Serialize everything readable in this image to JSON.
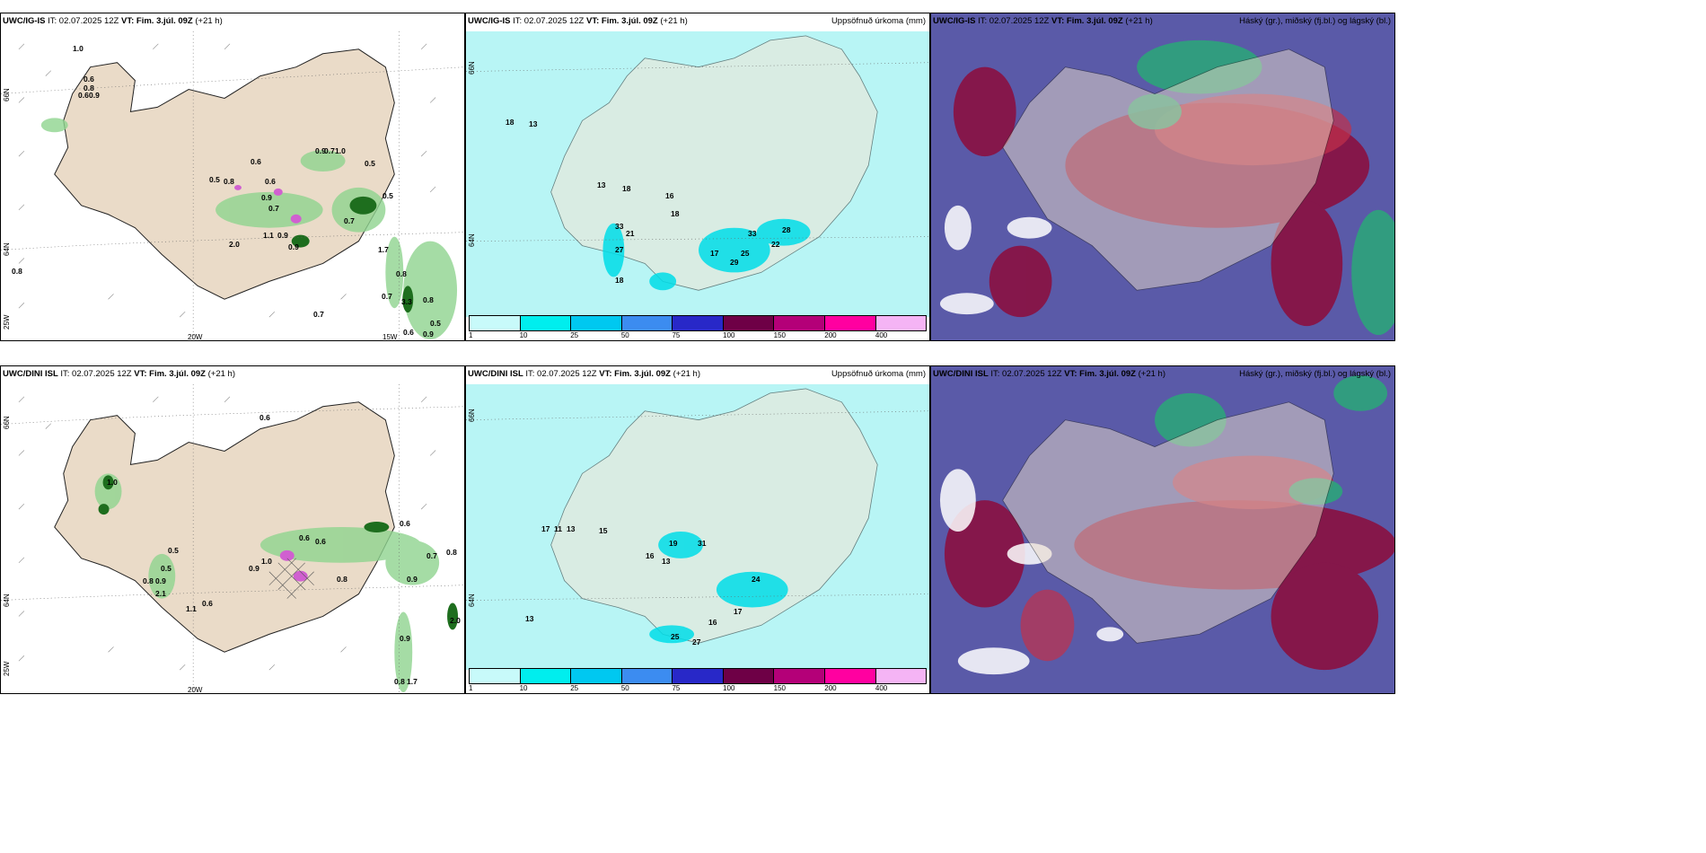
{
  "panels": [
    {
      "id": "ig-precip",
      "title_bold": "UWC/IG-IS",
      "title_it": "IT: 02.07.2025 12Z",
      "title_vt": "VT: Fim. 3.júl. 09Z",
      "title_lead": "(+21 h)",
      "right": ""
    },
    {
      "id": "ig-accum",
      "title_bold": "UWC/IG-IS",
      "title_it": "IT: 02.07.2025 12Z",
      "title_vt": "VT: Fim. 3.júl. 09Z",
      "title_lead": "(+21 h)",
      "right": "Uppsöfnuð úrkoma (mm)"
    },
    {
      "id": "ig-cloud",
      "title_bold": "UWC/IG-IS",
      "title_it": "IT: 02.07.2025 12Z",
      "title_vt": "VT: Fim. 3.júl. 09Z",
      "title_lead": "(+21 h)",
      "right": "Háský (gr.), miðský (fj.bl.) og lágský (bl.)"
    },
    {
      "id": "dini-precip",
      "title_bold": "UWC/DINI ISL",
      "title_it": "IT: 02.07.2025 12Z",
      "title_vt": "VT: Fim. 3.júl. 09Z",
      "title_lead": "(+21 h)",
      "right": ""
    },
    {
      "id": "dini-accum",
      "title_bold": "UWC/DINI ISL",
      "title_it": "IT: 02.07.2025 12Z",
      "title_vt": "VT: Fim. 3.júl. 09Z",
      "title_lead": "(+21 h)",
      "right": "Uppsöfnuð úrkoma (mm)"
    },
    {
      "id": "dini-cloud",
      "title_bold": "UWC/DINI ISL",
      "title_it": "IT: 02.07.2025 12Z",
      "title_vt": "VT: Fim. 3.júl. 09Z",
      "title_lead": "(+21 h)",
      "right": "Háský (gr.), miðský (fj.bl.) og lágský (bl.)"
    }
  ],
  "axis_labels": {
    "lat66": "66N",
    "lat64": "64N",
    "lon25": "25W",
    "lon20": "20W",
    "lon15": "15W"
  },
  "colorbar": {
    "ticks": [
      "1",
      "10",
      "25",
      "50",
      "75",
      "100",
      "150",
      "200",
      "400"
    ],
    "colors": [
      "#c8fafa",
      "#00eeee",
      "#00c8f0",
      "#3c8cf0",
      "#2828c8",
      "#6e0046",
      "#b40078",
      "#ff00a0",
      "#f5b4f5"
    ]
  },
  "precip_labels_ig": [
    "1.0",
    "0.6",
    "0.8",
    "0.6",
    "0.9",
    "0.9",
    "0.7",
    "1.0",
    "0.5",
    "0.6",
    "0.5",
    "0.8",
    "0.6",
    "0.9",
    "0.7",
    "0.9",
    "2.0",
    "1.1",
    "0.9",
    "0.7",
    "0.5",
    "1.7",
    "0.8",
    "0.7",
    "3.3",
    "0.8",
    "0.5",
    "0.6",
    "0.9",
    "0.7",
    "0.8"
  ],
  "precip_labels_dini": [
    "0.6",
    "1.0",
    "0.5",
    "0.5",
    "0.8",
    "0.9",
    "2.1",
    "1.1",
    "0.6",
    "0.6",
    "0.9",
    "1.0",
    "0.6",
    "0.8",
    "0.6",
    "0.7",
    "0.8",
    "0.9",
    "2.0",
    "0.9",
    "1.7",
    "0.8"
  ],
  "accum_labels_ig": [
    "18",
    "13",
    "13",
    "18",
    "33",
    "21",
    "27",
    "18",
    "16",
    "18",
    "17",
    "29",
    "25",
    "33",
    "22",
    "28"
  ],
  "accum_labels_dini": [
    "17",
    "11",
    "13",
    "15",
    "19",
    "31",
    "16",
    "13",
    "24",
    "17",
    "16",
    "25",
    "27",
    "13"
  ]
}
